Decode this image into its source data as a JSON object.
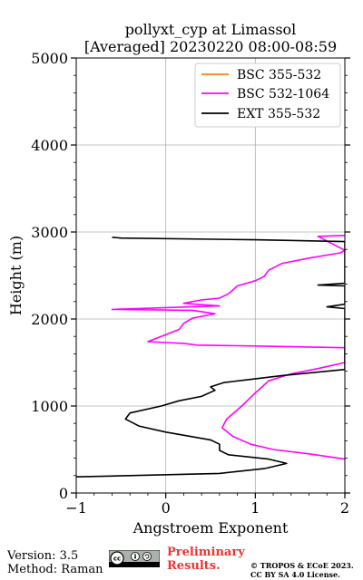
{
  "chart_data": {
    "type": "line",
    "title_line1": "pollyxt_cyp at Limassol",
    "title_line2": "[Averaged] 20230220 08:00-08:59",
    "xlabel": "Angstroem Exponent",
    "ylabel": "Height (m)",
    "xlim": [
      -1,
      2
    ],
    "ylim": [
      0,
      5000
    ],
    "xticks": [
      "−1",
      "0",
      "1",
      "2"
    ],
    "yticks": [
      "0",
      "1000",
      "2000",
      "3000",
      "4000",
      "5000"
    ],
    "grid": true,
    "legend_position": "top-right",
    "series": [
      {
        "name": "BSC 355-532",
        "color": "#ff7f0e",
        "points": []
      },
      {
        "name": "BSC 532-1064",
        "color": "#ff00ff",
        "points": [
          [
            2.0,
            390
          ],
          [
            1.6,
            450
          ],
          [
            1.2,
            500
          ],
          [
            0.95,
            560
          ],
          [
            0.75,
            650
          ],
          [
            0.63,
            750
          ],
          [
            0.68,
            850
          ],
          [
            0.85,
            1000
          ],
          [
            1.0,
            1150
          ],
          [
            1.15,
            1290
          ],
          [
            1.4,
            1370
          ],
          [
            1.7,
            1430
          ],
          [
            2.0,
            1500
          ],
          [
            2.0,
            1670
          ],
          [
            1.0,
            1690
          ],
          [
            0.35,
            1700
          ],
          [
            0.2,
            1720
          ],
          [
            -0.2,
            1740
          ],
          [
            0.0,
            1820
          ],
          [
            0.15,
            1880
          ],
          [
            0.2,
            1950
          ],
          [
            0.3,
            2010
          ],
          [
            0.55,
            2060
          ],
          [
            0.3,
            2100
          ],
          [
            -0.6,
            2110
          ],
          [
            0.6,
            2150
          ],
          [
            0.2,
            2180
          ],
          [
            0.4,
            2220
          ],
          [
            0.6,
            2240
          ],
          [
            0.7,
            2290
          ],
          [
            0.8,
            2380
          ],
          [
            1.0,
            2440
          ],
          [
            1.1,
            2490
          ],
          [
            1.15,
            2560
          ],
          [
            1.3,
            2640
          ],
          [
            1.6,
            2700
          ],
          [
            1.95,
            2760
          ],
          [
            2.0,
            2790
          ],
          [
            1.7,
            2950
          ],
          [
            2.0,
            2960
          ]
        ]
      },
      {
        "name": "EXT 355-532",
        "color": "#000000",
        "points": [
          [
            -1.0,
            185
          ],
          [
            -0.2,
            205
          ],
          [
            0.6,
            225
          ],
          [
            1.1,
            280
          ],
          [
            1.35,
            340
          ],
          [
            1.15,
            390
          ],
          [
            0.7,
            440
          ],
          [
            0.6,
            490
          ],
          [
            0.6,
            560
          ],
          [
            0.5,
            610
          ],
          [
            0.0,
            700
          ],
          [
            -0.3,
            770
          ],
          [
            -0.45,
            850
          ],
          [
            -0.4,
            920
          ],
          [
            -0.05,
            1000
          ],
          [
            0.15,
            1060
          ],
          [
            0.4,
            1110
          ],
          [
            0.55,
            1180
          ],
          [
            0.5,
            1220
          ],
          [
            0.65,
            1270
          ],
          [
            0.9,
            1300
          ],
          [
            1.3,
            1350
          ],
          [
            1.7,
            1390
          ],
          [
            2.0,
            1420
          ],
          [
            2.0,
            2120
          ],
          [
            1.8,
            2140
          ],
          [
            2.0,
            2170
          ],
          [
            2.0,
            2380
          ],
          [
            1.7,
            2390
          ],
          [
            2.0,
            2410
          ],
          [
            2.0,
            2890
          ],
          [
            1.0,
            2910
          ],
          [
            -0.5,
            2930
          ],
          [
            -0.6,
            2940
          ]
        ]
      }
    ]
  },
  "footer": {
    "version": "Version: 3.5",
    "method": "Method: Raman",
    "preliminary_line1": "Preliminary",
    "preliminary_line2": "Results.",
    "copyright_line1": "© TROPOS & ECoE 2023.",
    "copyright_line2": "CC BY SA 4.0 License."
  }
}
